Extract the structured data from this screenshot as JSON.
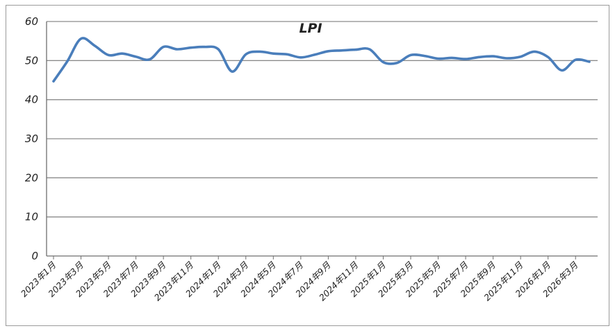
{
  "chart_data": {
    "type": "line",
    "title": "LPI",
    "xlabel": "",
    "ylabel": "",
    "ylim": [
      0,
      60
    ],
    "y_ticks": [
      0,
      10,
      20,
      30,
      40,
      50,
      60
    ],
    "grid": "horizontal",
    "legend": "none",
    "categories": [
      "2023年1月",
      "2023年2月",
      "2023年3月",
      "2023年4月",
      "2023年5月",
      "2023年6月",
      "2023年7月",
      "2023年8月",
      "2023年9月",
      "2023年10月",
      "2023年11月",
      "2023年12月",
      "2024年1月",
      "2024年2月",
      "2024年3月",
      "2024年4月",
      "2024年5月",
      "2024年6月",
      "2024年7月",
      "2024年8月",
      "2024年9月",
      "2024年10月",
      "2024年11月",
      "2024年12月",
      "2025年1月",
      "2025年2月",
      "2025年3月",
      "2025年4月",
      "2025年5月",
      "2025年6月",
      "2025年7月",
      "2025年8月",
      "2025年9月",
      "2025年10月",
      "2025年11月",
      "2025年12月",
      "2026年1月",
      "2026年2月",
      "2026年3月",
      "2026年4月"
    ],
    "x_tick_labels": [
      "2023年1月",
      "2023年3月",
      "2023年5月",
      "2023年7月",
      "2023年9月",
      "2023年11月",
      "2024年1月",
      "2024年3月",
      "2024年5月",
      "2024年7月",
      "2024年9月",
      "2024年11月",
      "2025年1月",
      "2025年3月",
      "2025年5月",
      "2025年7月",
      "2025年9月",
      "2025年11月",
      "2026年1月",
      "2026年3月"
    ],
    "series": [
      {
        "name": "",
        "color": "#4a7ebb",
        "values": [
          44.7,
          49.8,
          55.6,
          53.8,
          51.4,
          51.8,
          51.0,
          50.3,
          53.5,
          52.9,
          53.3,
          53.5,
          52.9,
          47.2,
          51.6,
          52.3,
          51.8,
          51.6,
          50.8,
          51.5,
          52.4,
          52.6,
          52.8,
          52.9,
          49.6,
          49.4,
          51.4,
          51.2,
          50.5,
          50.7,
          50.4,
          50.9,
          51.1,
          50.6,
          51.0,
          52.3,
          50.9,
          47.5,
          50.2,
          49.7
        ]
      }
    ]
  }
}
